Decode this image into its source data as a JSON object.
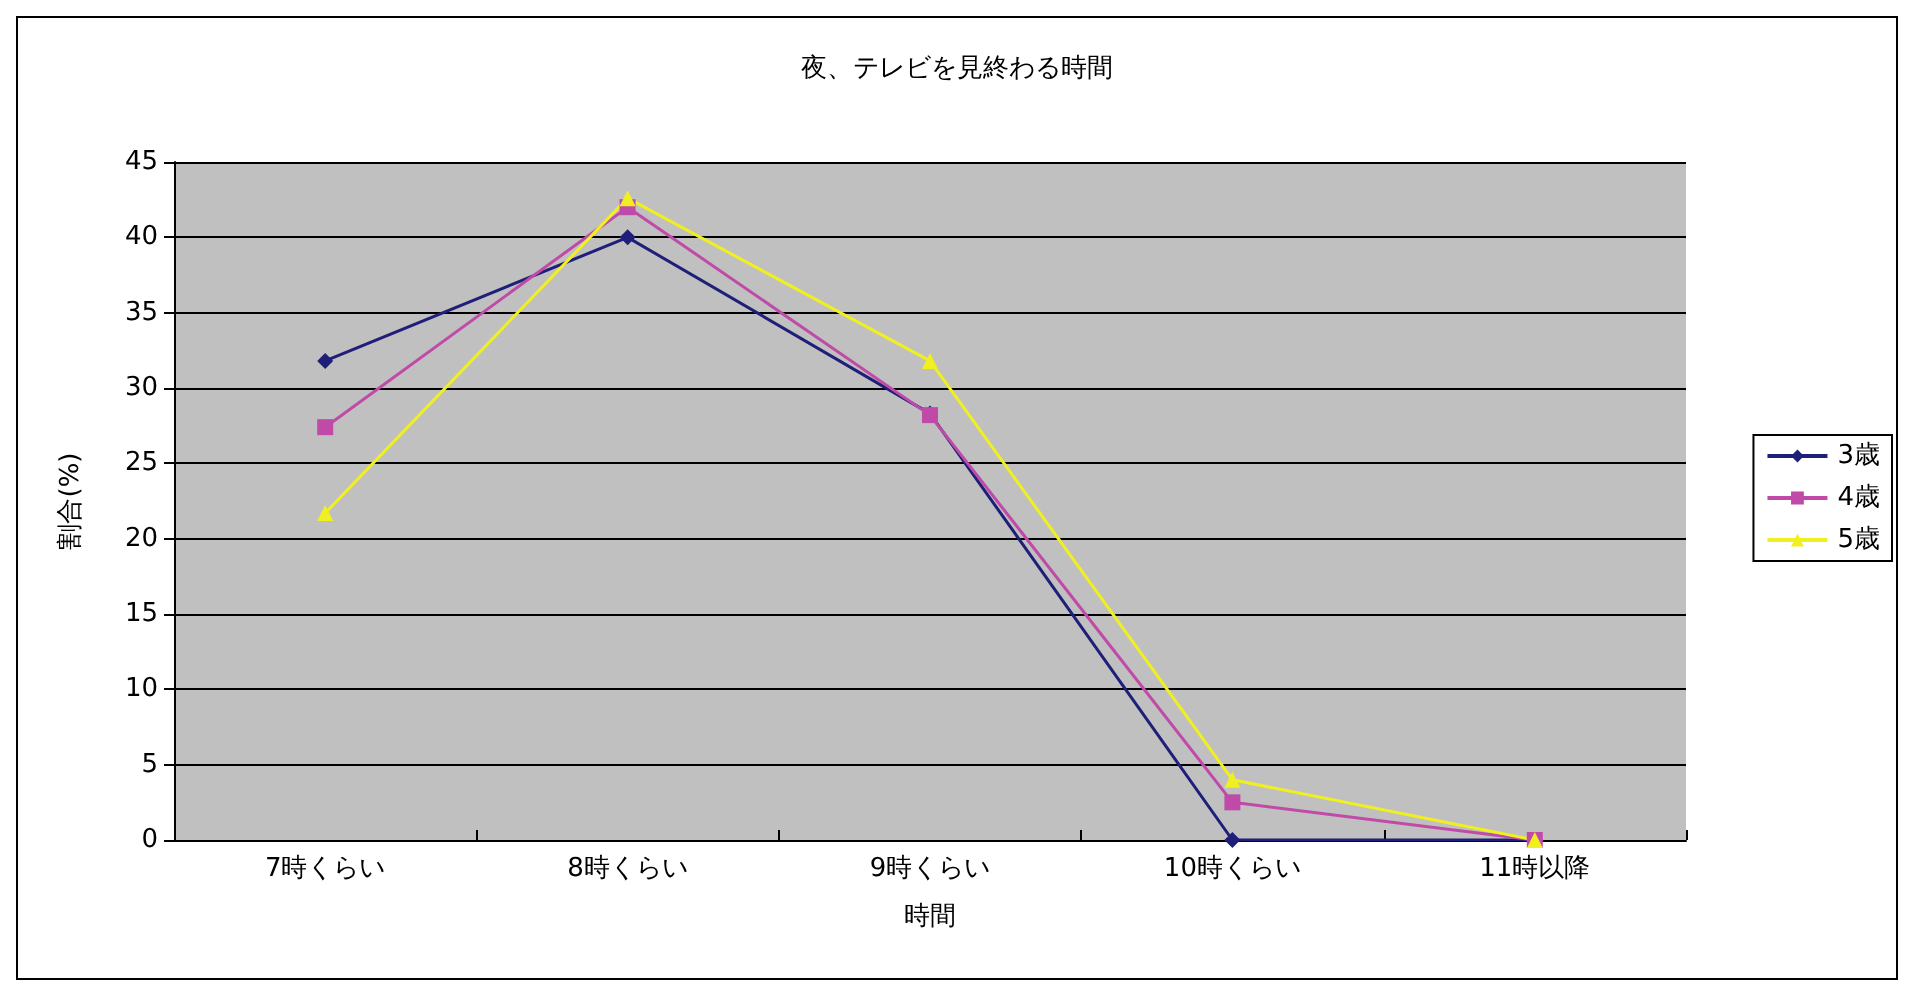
{
  "chart_data": {
    "type": "line",
    "title": "夜、テレビを見終わる時間",
    "xlabel": "時間",
    "ylabel": "割合(%)",
    "categories": [
      "7時くらい",
      "8時くらい",
      "9時くらい",
      "10時くらい",
      "11時以降"
    ],
    "series": [
      {
        "name": "3歳",
        "color": "#1f1f7a",
        "marker": "diamond",
        "values": [
          31.8,
          40,
          28.3,
          0,
          0
        ]
      },
      {
        "name": "4歳",
        "color": "#c04aa8",
        "marker": "square",
        "values": [
          27.4,
          42,
          28.2,
          2.5,
          0
        ]
      },
      {
        "name": "5歳",
        "color": "#f0f020",
        "marker": "triangle",
        "values": [
          21.7,
          42.6,
          31.8,
          4,
          0
        ]
      }
    ],
    "ylim": [
      0,
      45
    ],
    "yticks": [
      0,
      5,
      10,
      15,
      20,
      25,
      30,
      35,
      40,
      45
    ],
    "grid": "y",
    "legend": "right",
    "line_style": "solid"
  }
}
